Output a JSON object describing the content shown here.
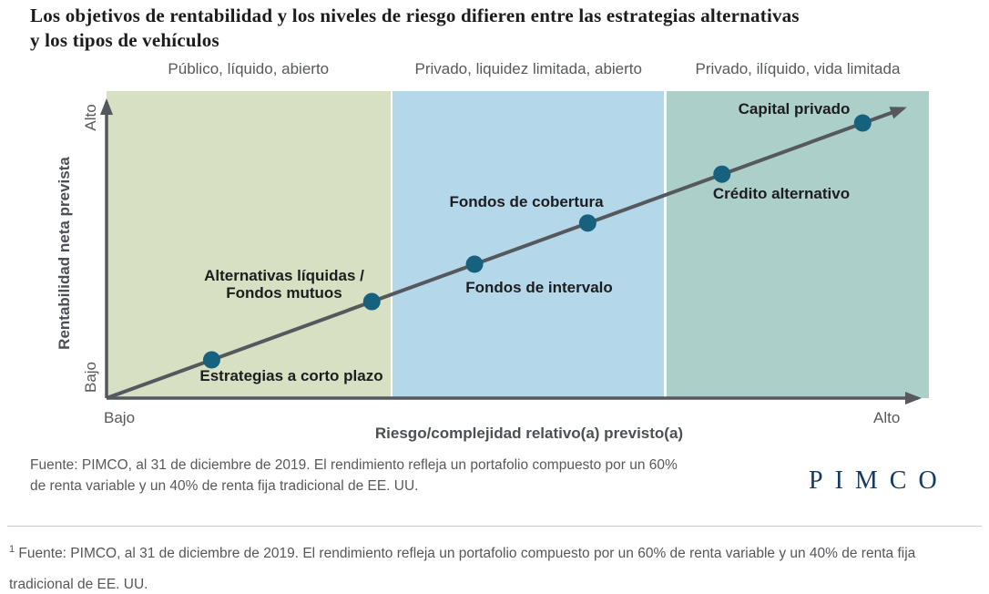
{
  "title": {
    "line1": "Los objetivos de rentabilidad y los niveles de riesgo difieren entre las estrategias alternativas",
    "line2": "y los tipos de vehículos"
  },
  "chart_data": {
    "type": "scatter",
    "title": "Los objetivos de rentabilidad y los niveles de riesgo difieren entre las estrategias alternativas y los tipos de vehículos",
    "xlabel": "Riesgo/complejidad relativo(a) previsto(a)",
    "ylabel": "Rentabilidad neta prevista",
    "x_range_labels": {
      "low": "Bajo",
      "high": "Alto"
    },
    "y_range_labels": {
      "low": "Bajo",
      "high": "Alto"
    },
    "trend": "ascending diagonal arrow, return rises with risk",
    "axis_ranges": {
      "x": [
        0,
        1
      ],
      "y": [
        0,
        1
      ]
    },
    "bands": [
      {
        "label": "Público, líquido, abierto",
        "color": "#d7e0c3",
        "x_start": 0.0,
        "x_end": 0.345
      },
      {
        "label": "Privado, liquidez limitada, abierto",
        "color": "#b4d8ea",
        "x_start": 0.348,
        "x_end": 0.678
      },
      {
        "label": "Privado, ilíquido, vida limitada",
        "color": "#adcfc9",
        "x_start": 0.681,
        "x_end": 1.0
      }
    ],
    "points": [
      {
        "label": "Estrategias a corto plazo",
        "risk": 0.13,
        "exp_return": 0.13
      },
      {
        "label": "Alternativas líquidas / Fondos mutuos",
        "risk": 0.328,
        "exp_return": 0.328
      },
      {
        "label": "Fondos de intervalo",
        "risk": 0.455,
        "exp_return": 0.455
      },
      {
        "label": "Fondos de cobertura",
        "risk": 0.595,
        "exp_return": 0.595
      },
      {
        "label": "Crédito alternativo",
        "risk": 0.761,
        "exp_return": 0.761
      },
      {
        "label": "Capital privado",
        "risk": 0.935,
        "exp_return": 0.935
      }
    ],
    "point_color": "#16617e",
    "line_color": "#55585c",
    "legend": "none",
    "grid": "off"
  },
  "source": "Fuente: PIMCO, al 31 de diciembre de 2019. El rendimiento refleja un portafolio compuesto por un 60% de renta variable y un 40% de renta fija tradicional de EE. UU.",
  "logo": "PIMCO",
  "footnote": {
    "marker": "1",
    "text": " Fuente: PIMCO, al 31 de diciembre de 2019. El rendimiento refleja un portafolio compuesto por un 60% de renta variable y un 40% de renta fija tradicional de EE. UU."
  }
}
